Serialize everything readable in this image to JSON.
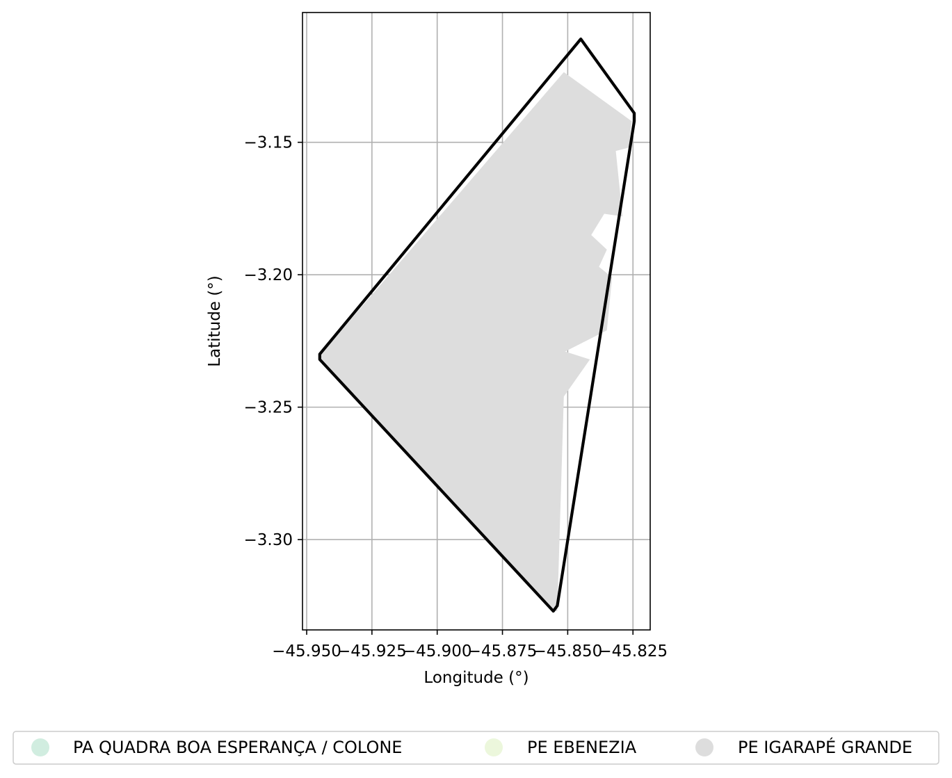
{
  "chart_data": {
    "type": "map",
    "xlabel": "Longitude (°)",
    "ylabel": "Latitude (°)",
    "xlim": [
      -45.9516,
      -45.8184
    ],
    "ylim": [
      -3.3341,
      -3.101
    ],
    "x_ticks": [
      {
        "value": -45.95,
        "label": "−45.950"
      },
      {
        "value": -45.925,
        "label": "−45.925"
      },
      {
        "value": -45.9,
        "label": "−45.900"
      },
      {
        "value": -45.875,
        "label": "−45.875"
      },
      {
        "value": -45.85,
        "label": "−45.850"
      },
      {
        "value": -45.825,
        "label": "−45.825"
      }
    ],
    "y_ticks": [
      {
        "value": -3.15,
        "label": "−3.15"
      },
      {
        "value": -3.2,
        "label": "−3.20"
      },
      {
        "value": -3.25,
        "label": "−3.25"
      },
      {
        "value": -3.3,
        "label": "−3.30"
      }
    ],
    "grid": true,
    "legend_position": "bottom",
    "legend": [
      {
        "name": "PA QUADRA BOA ESPERANÇA / COLONE",
        "color": "#d1ede0"
      },
      {
        "name": "PE EBENEZIA",
        "color": "#ecf7dc"
      },
      {
        "name": "PE IGARAPÉ GRANDE",
        "color": "#dddddd"
      }
    ],
    "area_polygon": {
      "name": "PE IGARAPÉ GRANDE",
      "color": "#dddddd",
      "coords": [
        [
          -45.9455,
          -3.231
        ],
        [
          -45.8515,
          -3.1235
        ],
        [
          -45.8255,
          -3.142
        ],
        [
          -45.8265,
          -3.152
        ],
        [
          -45.8325,
          -3.1535
        ],
        [
          -45.8312,
          -3.1605
        ],
        [
          -45.835,
          -3.1625
        ],
        [
          -45.837,
          -3.1565
        ],
        [
          -45.832,
          -3.149
        ],
        [
          -45.829,
          -3.178
        ],
        [
          -45.836,
          -3.177
        ],
        [
          -45.841,
          -3.185
        ],
        [
          -45.835,
          -3.1905
        ],
        [
          -45.838,
          -3.197
        ],
        [
          -45.833,
          -3.201
        ],
        [
          -45.835,
          -3.221
        ],
        [
          -45.851,
          -3.229
        ],
        [
          -45.8415,
          -3.232
        ],
        [
          -45.8515,
          -3.246
        ],
        [
          -45.854,
          -3.327
        ],
        [
          -45.855,
          -3.327
        ]
      ]
    },
    "boundary_polygon": {
      "color": "#000000",
      "coords": [
        [
          -45.945,
          -3.23
        ],
        [
          -45.845,
          -3.111
        ],
        [
          -45.8245,
          -3.139
        ],
        [
          -45.8245,
          -3.142
        ],
        [
          -45.854,
          -3.325
        ],
        [
          -45.8555,
          -3.327
        ],
        [
          -45.945,
          -3.232
        ]
      ]
    }
  }
}
